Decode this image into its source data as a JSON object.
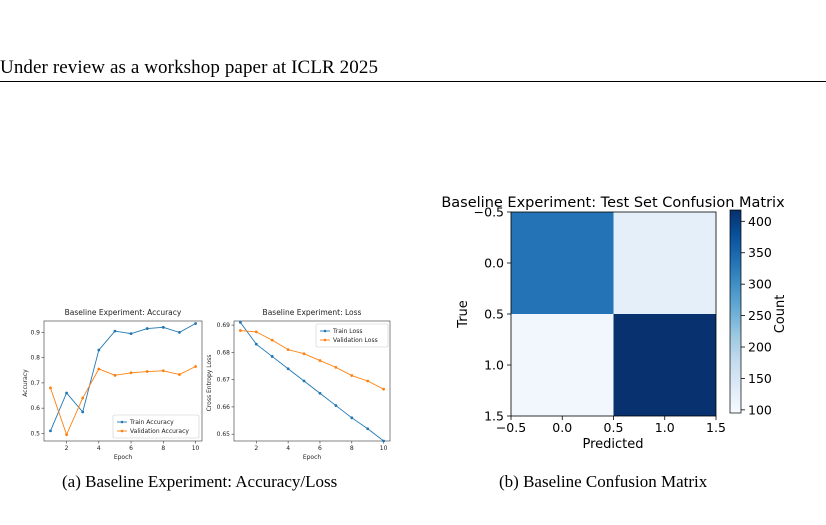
{
  "header": {
    "text": "Under review as a workshop paper at ICLR 2025"
  },
  "captions": {
    "a": "(a)  Baseline Experiment: Accuracy/Loss",
    "b": "(b)  Baseline Confusion Matrix"
  },
  "chart_data": [
    {
      "type": "line",
      "title": "Baseline Experiment: Accuracy",
      "xlabel": "Epoch",
      "ylabel": "Accuracy",
      "x": [
        1,
        2,
        3,
        4,
        5,
        6,
        7,
        8,
        9,
        10
      ],
      "xticks": [
        2,
        4,
        6,
        8,
        10
      ],
      "yticks": [
        0.5,
        0.6,
        0.7,
        0.8,
        0.9
      ],
      "xlim": [
        0.6,
        10.4
      ],
      "ylim": [
        0.47,
        0.945
      ],
      "legend": "lower-right",
      "series": [
        {
          "name": "Train Accuracy",
          "color": "#1f77b4",
          "values": [
            0.51,
            0.66,
            0.585,
            0.83,
            0.905,
            0.895,
            0.915,
            0.92,
            0.9,
            0.935
          ]
        },
        {
          "name": "Validation Accuracy",
          "color": "#ff7f0e",
          "values": [
            0.68,
            0.495,
            0.64,
            0.755,
            0.73,
            0.74,
            0.745,
            0.748,
            0.733,
            0.765
          ]
        }
      ]
    },
    {
      "type": "line",
      "title": "Baseline Experiment: Loss",
      "xlabel": "Epoch",
      "ylabel": "Cross Entropy Loss",
      "x": [
        1,
        2,
        3,
        4,
        5,
        6,
        7,
        8,
        9,
        10
      ],
      "xticks": [
        2,
        4,
        6,
        8,
        10
      ],
      "yticks": [
        0.65,
        0.66,
        0.67,
        0.68,
        0.69
      ],
      "xlim": [
        0.6,
        10.4
      ],
      "ylim": [
        0.6475,
        0.6915
      ],
      "legend": "top-right",
      "series": [
        {
          "name": "Train Loss",
          "color": "#1f77b4",
          "values": [
            0.691,
            0.683,
            0.6785,
            0.674,
            0.6695,
            0.665,
            0.6605,
            0.656,
            0.652,
            0.6475
          ]
        },
        {
          "name": "Validation Loss",
          "color": "#ff7f0e",
          "values": [
            0.688,
            0.6875,
            0.6845,
            0.681,
            0.6795,
            0.677,
            0.6745,
            0.6715,
            0.6695,
            0.6665
          ]
        }
      ]
    },
    {
      "type": "heatmap",
      "title": "Baseline Experiment: Test Set Confusion Matrix",
      "xlabel": "Predicted",
      "ylabel": "True",
      "xticks": [
        "−0.5",
        "0.0",
        "0.5",
        "1.0",
        "1.5"
      ],
      "yticks": [
        "−0.5",
        "0.0",
        "0.5",
        "1.0",
        "1.5"
      ],
      "matrix": [
        [
          335,
          125
        ],
        [
          105,
          415
        ]
      ],
      "colorbar": {
        "label": "Count",
        "ticks": [
          100,
          150,
          200,
          250,
          300,
          350,
          400
        ],
        "min": 95,
        "max": 418
      },
      "colormap": "Blues"
    }
  ]
}
